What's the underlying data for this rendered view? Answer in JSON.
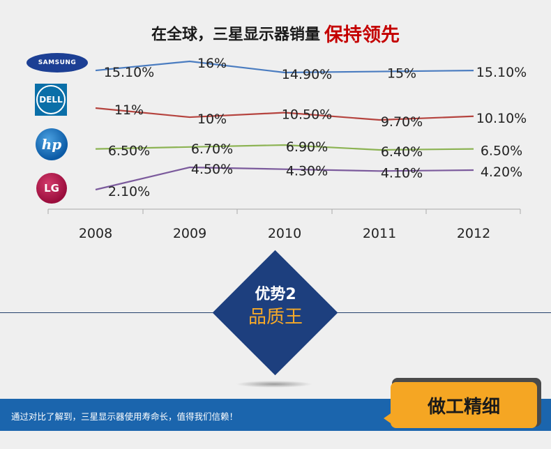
{
  "title": {
    "main": "在全球，三星显示器销量",
    "highlight": "保持领先"
  },
  "logos": {
    "samsung": "SAMSUNG",
    "dell": "DELL",
    "hp": "hp",
    "lg": "LG"
  },
  "chart_data": {
    "type": "line",
    "categories": [
      "2008",
      "2009",
      "2010",
      "2011",
      "2012"
    ],
    "series": [
      {
        "name": "SAMSUNG",
        "values": [
          15.1,
          16,
          14.9,
          15,
          15.1
        ],
        "labels": [
          "15.10%",
          "16%",
          "14.90%",
          "15%",
          "15.10%"
        ],
        "color": "#4a7cc0"
      },
      {
        "name": "DELL",
        "values": [
          11,
          10,
          10.5,
          9.7,
          10.1
        ],
        "labels": [
          "11%",
          "10%",
          "10.50%",
          "9.70%",
          "10.10%"
        ],
        "color": "#b5433e"
      },
      {
        "name": "hp",
        "values": [
          6.5,
          6.7,
          6.9,
          6.4,
          6.5
        ],
        "labels": [
          "6.50%",
          "6.70%",
          "6.90%",
          "6.40%",
          "6.50%"
        ],
        "color": "#8cb353"
      },
      {
        "name": "LG",
        "values": [
          2.1,
          4.5,
          4.3,
          4.1,
          4.2
        ],
        "labels": [
          "2.10%",
          "4.50%",
          "4.30%",
          "4.10%",
          "4.20%"
        ],
        "color": "#7b5a9c"
      }
    ],
    "grid": false,
    "legend": "left-logos"
  },
  "diamond": {
    "line1": "优势2",
    "line2": "品质王"
  },
  "footer": {
    "text": "通过对比了解到，三星显示器使用寿命长，值得我们信赖！",
    "badge": "做工精细"
  },
  "colors": {
    "navy": "#1d3f7e",
    "orange": "#f6a928",
    "footer": "#1b65ad",
    "highlight": "#c40000"
  }
}
